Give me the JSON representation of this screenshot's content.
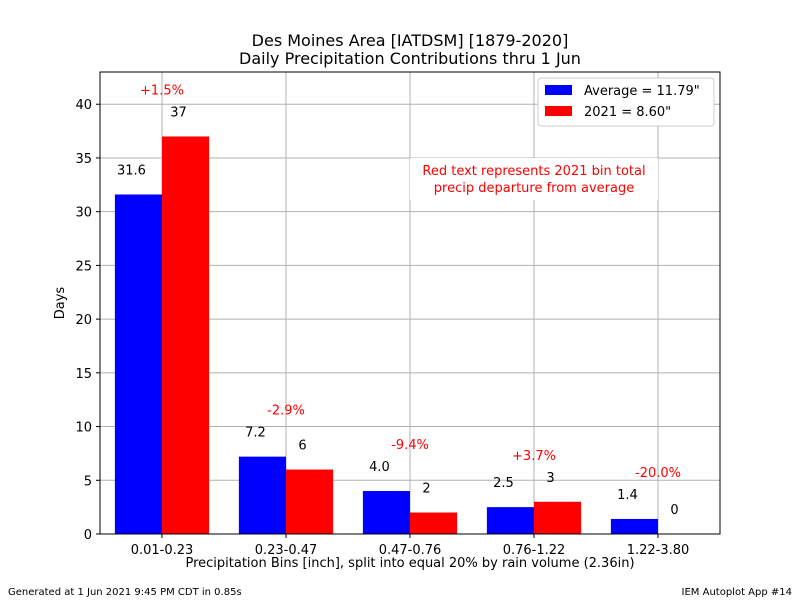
{
  "chart_data": {
    "type": "bar",
    "title_line1": "Des Moines Area [IATDSM] [1879-2020]",
    "title_line2": "Daily Precipitation Contributions thru 1 Jun",
    "xlabel": "Precipitation Bins [inch], split into equal 20% by rain volume (2.36in)",
    "ylabel": "Days",
    "ylim": [
      0,
      43
    ],
    "yticks": [
      0,
      5,
      10,
      15,
      20,
      25,
      30,
      35,
      40
    ],
    "grid": true,
    "legend_position": "top-right",
    "categories": [
      "0.01-0.23",
      "0.23-0.47",
      "0.47-0.76",
      "0.76-1.22",
      "1.22-3.80"
    ],
    "series": [
      {
        "name": "Average = 11.79\"",
        "color": "#0000ff",
        "values": [
          31.6,
          7.2,
          4.0,
          2.5,
          1.4
        ],
        "labels": [
          "31.6",
          "7.2",
          "4.0",
          "2.5",
          "1.4"
        ]
      },
      {
        "name": "2021 = 8.60\"",
        "color": "#ff0000",
        "values": [
          37,
          6,
          2,
          3,
          0
        ],
        "labels": [
          "37",
          "6",
          "2",
          "3",
          "0"
        ]
      }
    ],
    "departures": [
      "+1.5%",
      "-2.9%",
      "-9.4%",
      "+3.7%",
      "-20.0%"
    ],
    "annotation_line1": "Red text represents 2021 bin total",
    "annotation_line2": "precip departure from average"
  },
  "footer": {
    "left": "Generated at 1 Jun 2021 9:45 PM CDT in 0.85s",
    "right": "IEM Autoplot App #14"
  }
}
